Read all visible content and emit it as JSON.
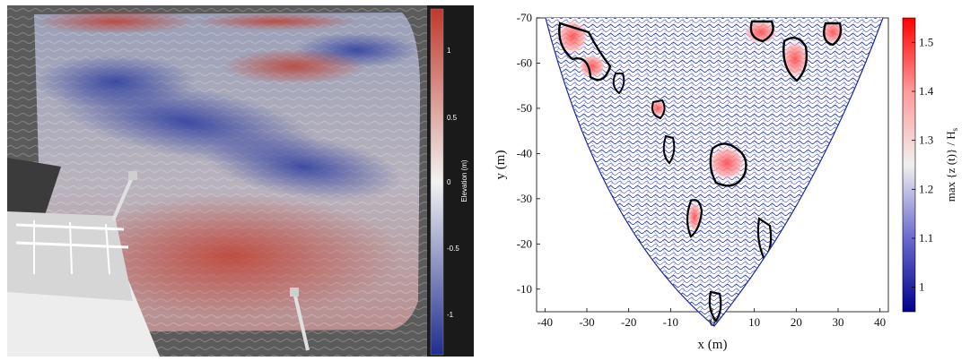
{
  "photo": {
    "colorbar_label": "Elevation (m)",
    "colorbar_ticks": [
      "1",
      "0.5",
      "0",
      "-0.5",
      "-1"
    ],
    "colorbar_colors": {
      "high": "#c0392b",
      "mid": "#f2f2f2",
      "low": "#1f2c8f"
    }
  },
  "plot": {
    "xlabel": "x (m)",
    "ylabel": "y (m)",
    "colorbar_label": "max {z (t)} / H",
    "colorbar_label_sub": "s",
    "colorbar_ticks": [
      "1.5",
      "1.4",
      "1.3",
      "1.2",
      "1.1",
      "1"
    ],
    "colorbar_colors": {
      "high": "#ff0000",
      "mid": "#f0f0f0",
      "low": "#00008b"
    }
  },
  "chart_data": {
    "type": "heatmap",
    "xlabel": "x (m)",
    "ylabel": "y (m)",
    "xlim": [
      -42,
      42
    ],
    "ylim": [
      -5,
      -70
    ],
    "x_ticks": [
      -40,
      -30,
      -20,
      -10,
      0,
      10,
      20,
      30,
      40
    ],
    "y_ticks": [
      -70,
      -60,
      -50,
      -40,
      -30,
      -20,
      -10
    ],
    "colorbar_label": "max {z (t)} / H_s",
    "colorbar_range": [
      0.95,
      1.55
    ],
    "colorbar_ticks": [
      1.5,
      1.4,
      1.3,
      1.2,
      1.1,
      1.0
    ]
  }
}
